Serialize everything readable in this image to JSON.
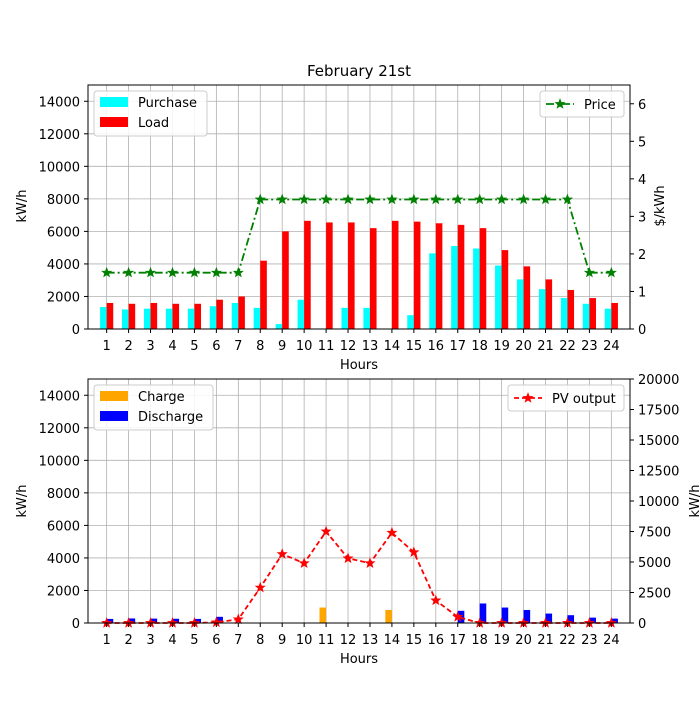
{
  "chart_data": [
    {
      "type": "bar",
      "title": "February 21st",
      "xlabel": "Hours",
      "ylabel": "kW/h",
      "ylabel_right": "$/kWh",
      "categories": [
        "1",
        "2",
        "3",
        "4",
        "5",
        "6",
        "7",
        "8",
        "9",
        "10",
        "11",
        "12",
        "13",
        "14",
        "15",
        "16",
        "17",
        "18",
        "19",
        "20",
        "21",
        "22",
        "23",
        "24"
      ],
      "ylim": [
        0,
        15000
      ],
      "yticks": [
        0,
        2000,
        4000,
        6000,
        8000,
        10000,
        12000,
        14000
      ],
      "ylim_right": [
        0,
        6.5
      ],
      "yticks_right": [
        0,
        1,
        2,
        3,
        4,
        5,
        6
      ],
      "grid": true,
      "series": [
        {
          "name": "Purchase",
          "kind": "bar",
          "axis": "left",
          "color": "#00ffff",
          "values": [
            1350,
            1200,
            1250,
            1250,
            1250,
            1400,
            1600,
            1300,
            300,
            1800,
            0,
            1300,
            1300,
            0,
            850,
            4650,
            5100,
            4950,
            3900,
            3050,
            2450,
            1900,
            1550,
            1250
          ]
        },
        {
          "name": "Load",
          "kind": "bar",
          "axis": "left",
          "color": "#ff0000",
          "values": [
            1600,
            1550,
            1600,
            1550,
            1550,
            1800,
            2000,
            4200,
            6000,
            6650,
            6550,
            6550,
            6200,
            6650,
            6600,
            6500,
            6400,
            6200,
            4850,
            3850,
            3050,
            2400,
            1900,
            1600
          ]
        },
        {
          "name": "Price",
          "kind": "line",
          "axis": "right",
          "color": "#008000",
          "values": [
            1.5,
            1.5,
            1.5,
            1.5,
            1.5,
            1.5,
            1.5,
            3.45,
            3.45,
            3.45,
            3.45,
            3.45,
            3.45,
            3.45,
            3.45,
            3.45,
            3.45,
            3.45,
            3.45,
            3.45,
            3.45,
            3.45,
            1.5,
            1.5
          ]
        }
      ],
      "legend_left": [
        "Purchase",
        "Load"
      ],
      "legend_right": [
        "Price"
      ]
    },
    {
      "type": "bar",
      "title": "",
      "xlabel": "Hours",
      "ylabel": "kW/h",
      "ylabel_right": "kW/h",
      "categories": [
        "1",
        "2",
        "3",
        "4",
        "5",
        "6",
        "7",
        "8",
        "9",
        "10",
        "11",
        "12",
        "13",
        "14",
        "15",
        "16",
        "17",
        "18",
        "19",
        "20",
        "21",
        "22",
        "23",
        "24"
      ],
      "ylim": [
        0,
        15000
      ],
      "yticks": [
        0,
        2000,
        4000,
        6000,
        8000,
        10000,
        12000,
        14000
      ],
      "ylim_right": [
        0,
        20000
      ],
      "yticks_right": [
        0,
        2500,
        5000,
        7500,
        10000,
        12500,
        15000,
        17500,
        20000
      ],
      "grid": true,
      "series": [
        {
          "name": "Charge",
          "kind": "bar",
          "axis": "left",
          "color": "#ffa500",
          "values": [
            0,
            0,
            0,
            0,
            0,
            0,
            0,
            0,
            0,
            0,
            950,
            0,
            0,
            800,
            0,
            0,
            0,
            0,
            0,
            0,
            0,
            0,
            0,
            0
          ]
        },
        {
          "name": "Discharge",
          "kind": "bar",
          "axis": "left",
          "color": "#0000ff",
          "values": [
            250,
            280,
            270,
            260,
            250,
            380,
            0,
            0,
            0,
            0,
            0,
            0,
            0,
            0,
            0,
            0,
            750,
            1200,
            950,
            800,
            580,
            480,
            330,
            270
          ]
        },
        {
          "name": "PV output",
          "kind": "line",
          "axis": "right",
          "color": "#ff0000",
          "values": [
            0,
            0,
            0,
            0,
            0,
            50,
            300,
            2900,
            5650,
            4900,
            7500,
            5300,
            4900,
            7400,
            5800,
            1850,
            500,
            0,
            0,
            0,
            0,
            0,
            0,
            0
          ]
        }
      ],
      "legend_left": [
        "Charge",
        "Discharge"
      ],
      "legend_right": [
        "PV output"
      ]
    }
  ]
}
